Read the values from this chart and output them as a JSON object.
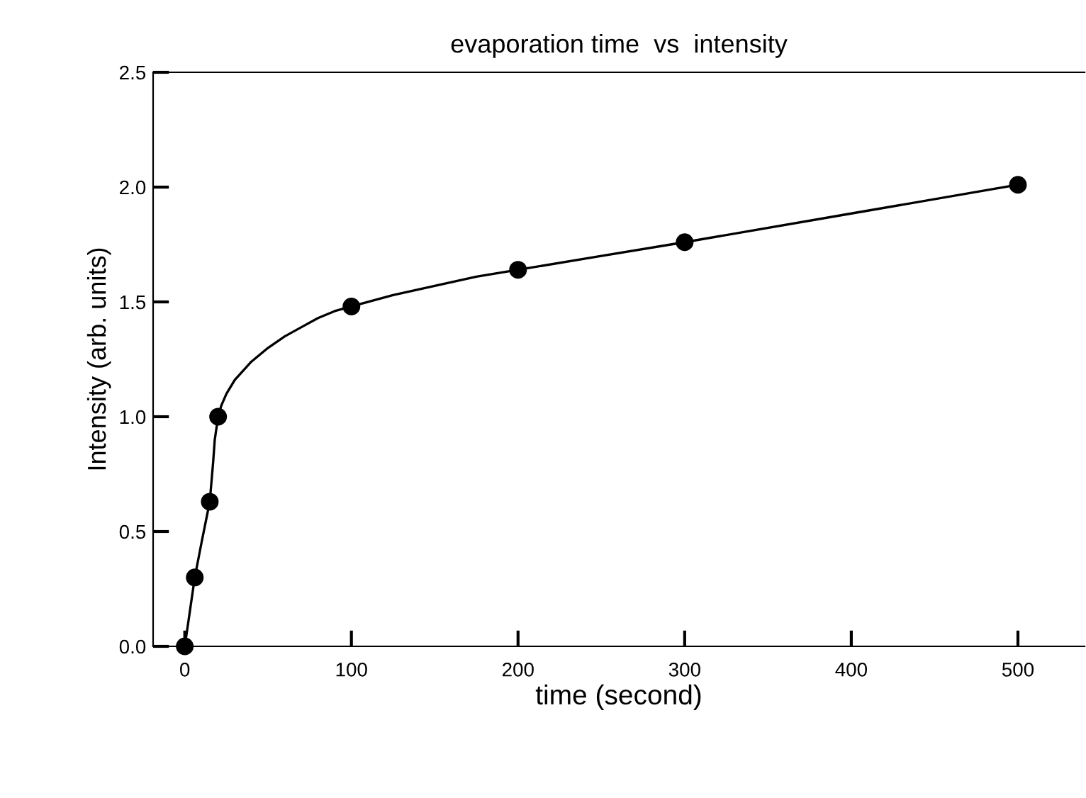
{
  "chart_data": {
    "type": "line",
    "title": "evaporation time  vs  intensity",
    "xlabel": "time (second)",
    "ylabel": "Intensity (arb. units)",
    "x": [
      0,
      6,
      15,
      20,
      100,
      200,
      300,
      500
    ],
    "series": [
      {
        "marker": "none",
        "color": "#000000",
        "x": [
          0,
          3,
          6,
          10,
          15,
          17,
          18,
          20,
          22,
          25,
          30,
          40,
          50,
          60,
          70,
          80,
          90,
          100,
          125,
          150,
          175,
          200,
          250,
          300,
          400,
          500
        ],
        "values": [
          0.0,
          0.15,
          0.3,
          0.45,
          0.63,
          0.8,
          0.9,
          1.0,
          1.05,
          1.1,
          1.16,
          1.24,
          1.3,
          1.35,
          1.39,
          1.43,
          1.46,
          1.48,
          1.53,
          1.57,
          1.61,
          1.64,
          1.7,
          1.76,
          1.885,
          2.01
        ]
      },
      {
        "type": "scatter",
        "marker": "circle",
        "color": "#000000",
        "values": [
          0.0,
          0.3,
          0.63,
          1.0,
          1.48,
          1.64,
          1.76,
          2.01
        ]
      }
    ],
    "xlim": [
      -19,
      540
    ],
    "xticks": [
      0,
      100,
      200,
      300,
      400,
      500
    ],
    "ylim": [
      0,
      2.5
    ],
    "yticks": [
      {
        "value": 0,
        "label": "0.0"
      },
      0.5,
      {
        "value": 1,
        "label": "1.0"
      },
      1.5,
      {
        "value": 2,
        "label": "2.0"
      },
      2.5
    ],
    "line_style": "solid",
    "grid": false
  }
}
